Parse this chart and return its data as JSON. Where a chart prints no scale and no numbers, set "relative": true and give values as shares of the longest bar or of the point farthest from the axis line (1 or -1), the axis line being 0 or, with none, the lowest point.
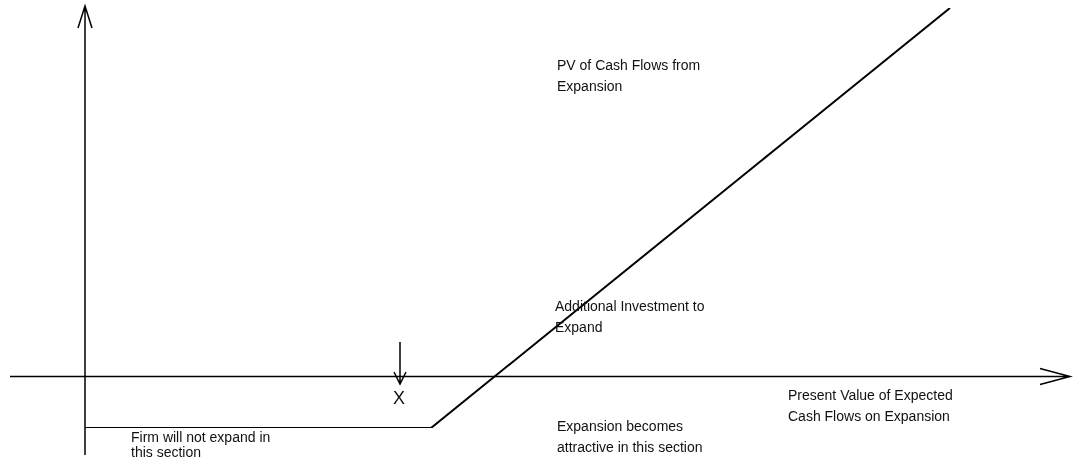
{
  "chart_data": {
    "type": "line",
    "relative": true,
    "categories": [
      null,
      null,
      null,
      null,
      null,
      null
    ],
    "values": [
      -0.14,
      -0.14,
      -0.14,
      0.24,
      0.62,
      1.0
    ],
    "color": "#000000",
    "xlabel": "Present Value of Expected Cash Flows on Expansion",
    "annotations": [
      "PV of Cash Flows from Expansion",
      "Additional Investment to Expand",
      "X",
      "Firm will not expand in this section",
      "Expansion becomes attractive in this section"
    ]
  }
}
